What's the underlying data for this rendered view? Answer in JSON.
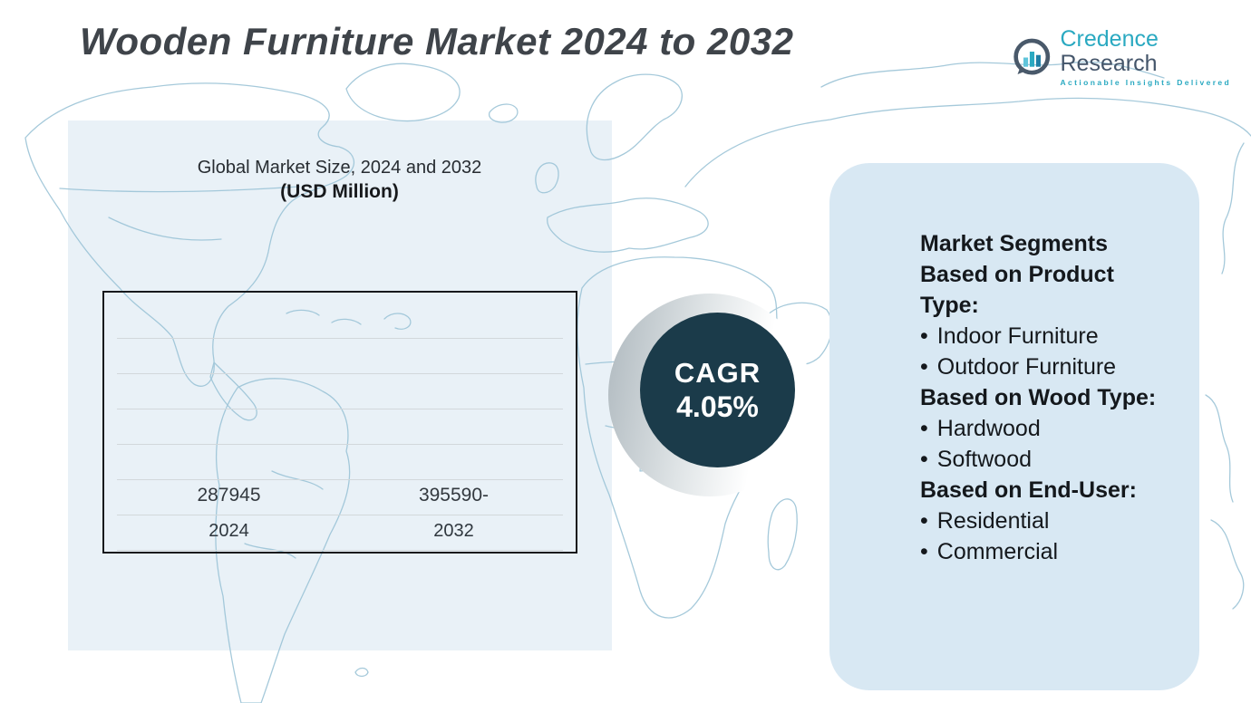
{
  "page": {
    "title": "Wooden Furniture Market 2024 to 2032"
  },
  "logo": {
    "brand_primary": "Credence",
    "brand_secondary": " Research",
    "tagline": "Actionable Insights Delivered"
  },
  "chart_data": {
    "type": "bar",
    "title": "Global Market Size, 2024 and 2032",
    "subtitle": "(USD Million)",
    "categories": [
      "2024",
      "2032"
    ],
    "values": [
      287945,
      395590
    ],
    "value_labels": [
      "287945",
      "395590-"
    ],
    "bar_colors": [
      "#38a2a0",
      "#0d83b5"
    ],
    "ylim": [
      200000,
      440000
    ],
    "grid": true,
    "legend": "none",
    "xlabel": "",
    "ylabel": ""
  },
  "cagr": {
    "label": "CAGR",
    "value": "4.05%",
    "circle_color": "#1b3b4a"
  },
  "segments": {
    "groups": [
      {
        "header": "Market Segments Based on Product Type:",
        "bullets": [
          "Indoor Furniture",
          "Outdoor Furniture"
        ]
      },
      {
        "header": "Based on Wood Type:",
        "bullets": [
          "Hardwood",
          "Softwood"
        ]
      },
      {
        "header": "Based on End-User:",
        "bullets": [
          "Residential",
          "Commercial"
        ]
      }
    ]
  },
  "colors": {
    "accent_teal": "#2aa9c1",
    "bar_2024": "#38a2a0",
    "bar_2032": "#0d83b5",
    "cagr_circle": "#1b3b4a",
    "panel_left": "#e9f1f7",
    "panel_right": "#d8e8f3",
    "map_stroke": "#9cc4d7"
  }
}
